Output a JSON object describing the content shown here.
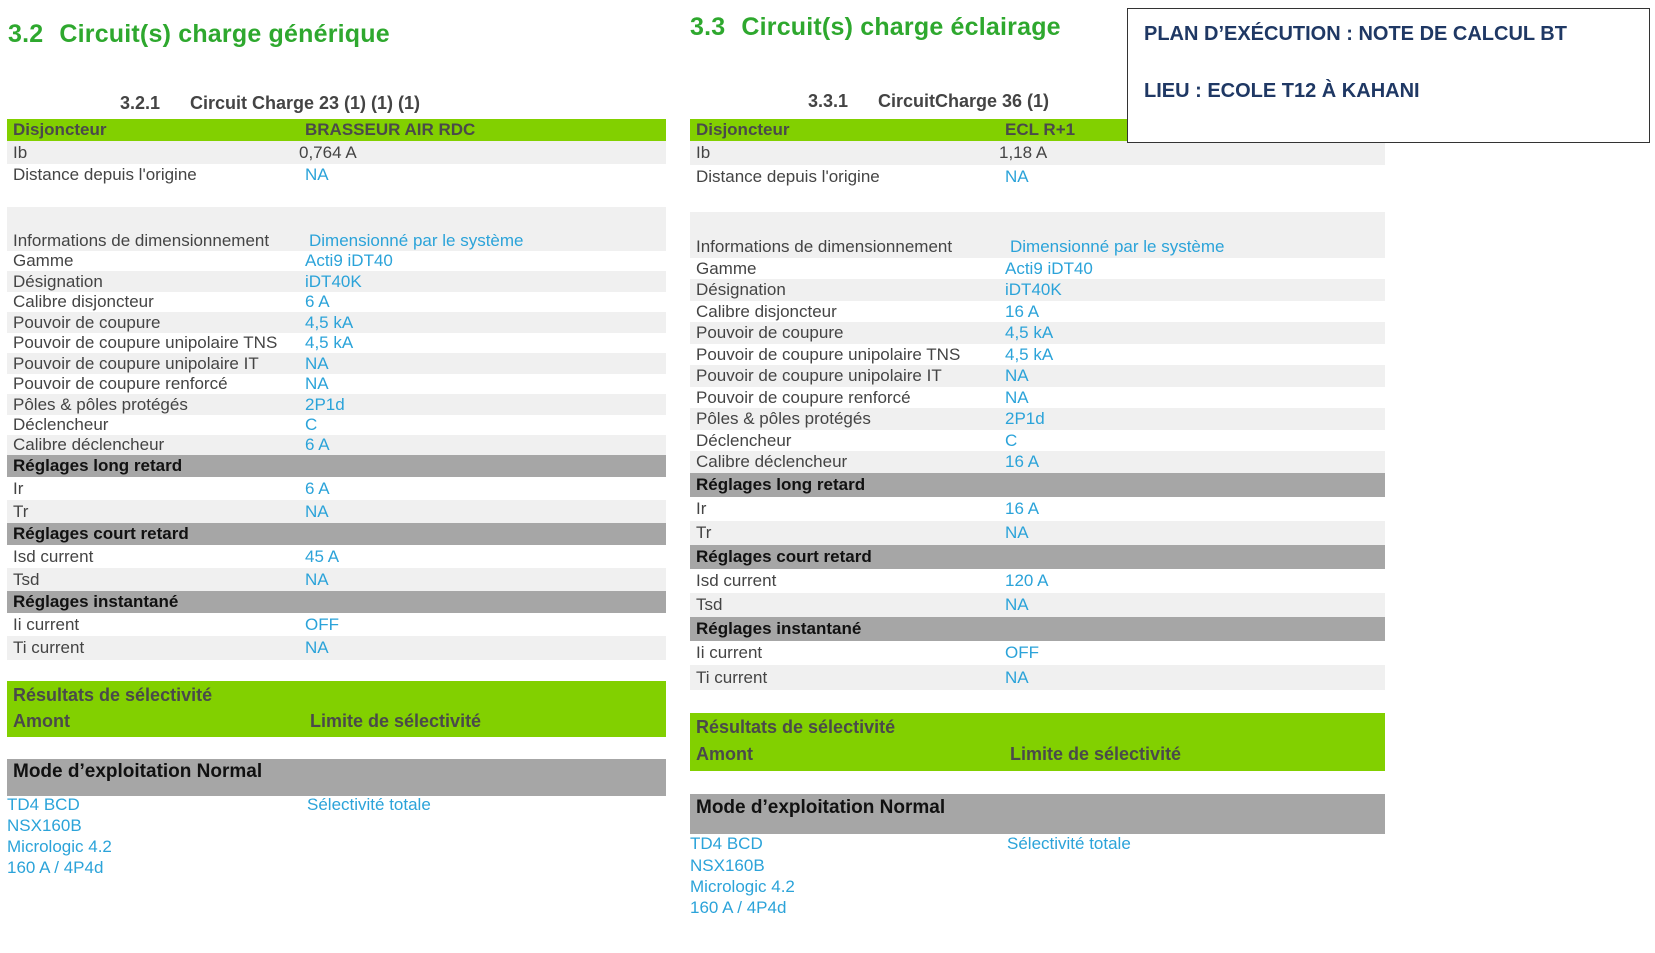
{
  "left": {
    "section_num": "3.2",
    "section_title": "Circuit(s) charge générique",
    "sub_num": "3.2.1",
    "sub_title": "Circuit Charge 23 (1) (1) (1)",
    "disj_label": "Disjoncteur",
    "disj_value": "BRASSEUR AIR RDC",
    "ib_label": "Ib",
    "ib_value": "0,764 A",
    "dist_label": "Distance depuis l'origine",
    "dist_value": "NA",
    "info_label": "Informations de dimensionnement",
    "info_value": "Dimensionné par le système",
    "specs": [
      {
        "k": "Gamme",
        "v": "Acti9 iDT40"
      },
      {
        "k": "Désignation",
        "v": "iDT40K"
      },
      {
        "k": "Calibre disjoncteur",
        "v": "6 A"
      },
      {
        "k": "Pouvoir de coupure",
        "v": "4,5 kA"
      },
      {
        "k": "Pouvoir de coupure unipolaire TNS",
        "v": "4,5 kA"
      },
      {
        "k": "Pouvoir de coupure unipolaire IT",
        "v": "NA"
      },
      {
        "k": "Pouvoir de coupure renforcé",
        "v": "NA"
      },
      {
        "k": "Pôles & pôles protégés",
        "v": "2P1d"
      },
      {
        "k": "Déclencheur",
        "v": "C"
      },
      {
        "k": "Calibre déclencheur",
        "v": "6 A"
      }
    ],
    "long_header": "Réglages long retard",
    "ir_label": "Ir",
    "ir_value": "6 A",
    "tr_label": "Tr",
    "tr_value": "NA",
    "court_header": "Réglages court retard",
    "isd_label": "Isd current",
    "isd_value": "45 A",
    "tsd_label": "Tsd",
    "tsd_value": "NA",
    "inst_header": "Réglages instantané",
    "ii_label": "Ii current",
    "ii_value": "OFF",
    "ti_label": "Ti current",
    "ti_value": "NA",
    "result_title": "Résultats de sélectivité",
    "amont_label": "Amont",
    "limite_label": "Limite de sélectivité",
    "mode_label": "Mode d’exploitation Normal",
    "upstream": [
      "TD4 BCD",
      "NSX160B",
      "Micrologic 4.2",
      "160 A / 4P4d"
    ],
    "selectivity": "Sélectivité totale"
  },
  "right": {
    "section_num": "3.3",
    "section_title": "Circuit(s) charge éclairage",
    "sub_num": "3.3.1",
    "sub_title": "CircuitCharge 36 (1)",
    "disj_label": "Disjoncteur",
    "disj_value": "ECL R+1",
    "ib_label": "Ib",
    "ib_value": "1,18 A",
    "dist_label": "Distance depuis l'origine",
    "dist_value": "NA",
    "info_label": "Informations de dimensionnement",
    "info_value": "Dimensionné par le système",
    "specs": [
      {
        "k": "Gamme",
        "v": "Acti9 iDT40"
      },
      {
        "k": "Désignation",
        "v": "iDT40K"
      },
      {
        "k": "Calibre disjoncteur",
        "v": "16 A"
      },
      {
        "k": "Pouvoir de coupure",
        "v": "4,5 kA"
      },
      {
        "k": "Pouvoir de coupure unipolaire TNS",
        "v": "4,5 kA"
      },
      {
        "k": "Pouvoir de coupure unipolaire IT",
        "v": "NA"
      },
      {
        "k": "Pouvoir de coupure renforcé",
        "v": "NA"
      },
      {
        "k": "Pôles & pôles protégés",
        "v": "2P1d"
      },
      {
        "k": "Déclencheur",
        "v": "C"
      },
      {
        "k": "Calibre déclencheur",
        "v": "16 A"
      }
    ],
    "long_header": "Réglages long retard",
    "ir_label": "Ir",
    "ir_value": "16 A",
    "tr_label": "Tr",
    "tr_value": "NA",
    "court_header": "Réglages court retard",
    "isd_label": "Isd current",
    "isd_value": "120 A",
    "tsd_label": "Tsd",
    "tsd_value": "NA",
    "inst_header": "Réglages instantané",
    "ii_label": "Ii current",
    "ii_value": "OFF",
    "ti_label": "Ti current",
    "ti_value": "NA",
    "result_title": "Résultats de sélectivité",
    "amont_label": "Amont",
    "limite_label": "Limite de sélectivité",
    "mode_label": "Mode d’exploitation Normal",
    "upstream": [
      "TD4 BCD",
      "NSX160B",
      "Micrologic 4.2",
      "160 A / 4P4d"
    ],
    "selectivity": "Sélectivité totale"
  },
  "plan": {
    "title": "PLAN D’EXÉCUTION : NOTE DE CALCUL BT",
    "location": "LIEU : ECOLE T12  À KAHANI"
  },
  "colors": {
    "title_green": "#2ea82e",
    "header_green": "#82d000",
    "header_gray": "#a6a6a6",
    "value_blue": "#2ba3d9",
    "plan_navy": "#1f3864"
  }
}
